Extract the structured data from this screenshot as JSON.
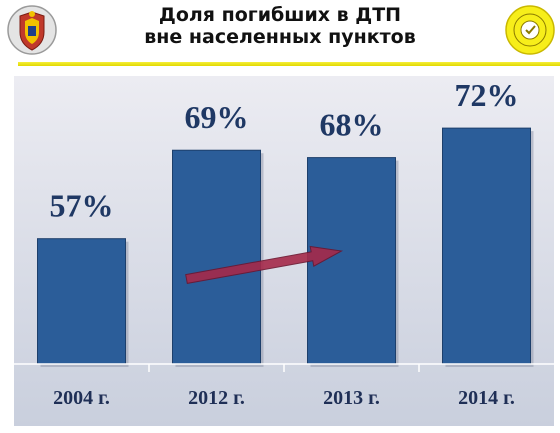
{
  "header": {
    "title_line1": "Доля погибших в ДТП",
    "title_line2": "вне населенных пунктов",
    "left_emblem_icon": "traffic-police-emblem-icon",
    "right_badge_icon": "round-yellow-seal-icon"
  },
  "colors": {
    "bar": "#2b5d99",
    "plot_background": "#d3d7e3",
    "value_label": "#1f3864",
    "arrow": "#a52a4a",
    "header_rule": "#e8de00"
  },
  "chart_data": {
    "type": "bar",
    "categories": [
      "2004 г.",
      "2012 г.",
      "2013 г.",
      "2014 г."
    ],
    "values": [
      57,
      69,
      68,
      72
    ],
    "value_labels": [
      "57%",
      "69%",
      "68%",
      "72%"
    ],
    "title": "Доля погибших в ДТП вне населенных пунктов",
    "xlabel": "",
    "ylabel": "",
    "ylim": [
      40,
      75
    ],
    "grid": false,
    "legend": "none",
    "annotations": [
      {
        "type": "arrow",
        "from_category": "2012 г.",
        "to_category": "2013 г.",
        "meaning": "upward trend"
      }
    ]
  }
}
